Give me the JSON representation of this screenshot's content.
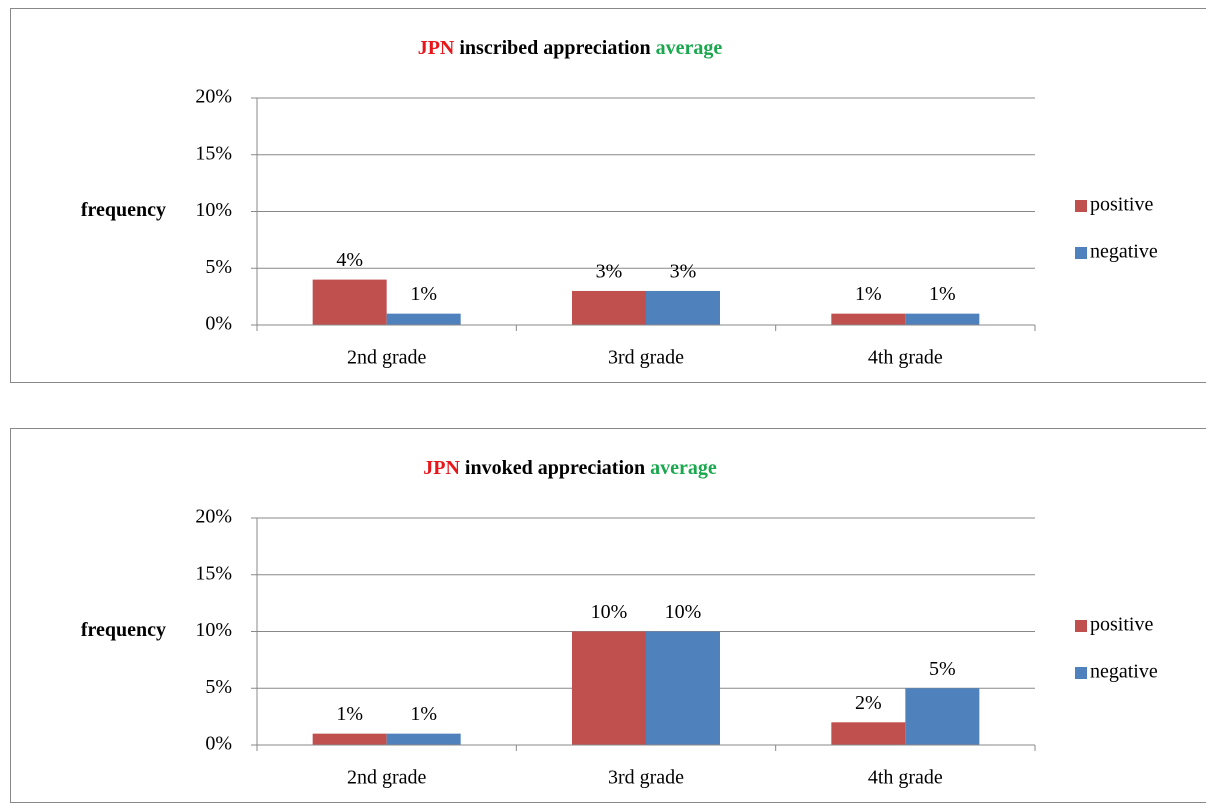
{
  "chart_data": [
    {
      "type": "bar",
      "title_parts": [
        {
          "text": "JPN",
          "color": "#e8161b"
        },
        {
          "text": "inscribed appreciation",
          "color": "#000000"
        },
        {
          "text": "average",
          "color": "#1aa84f"
        }
      ],
      "y_label": "frequency",
      "categories": [
        "2nd grade",
        "3rd grade",
        "4th grade"
      ],
      "series": [
        {
          "name": "positive",
          "color": "#c0504d",
          "values": [
            4,
            3,
            1
          ],
          "value_labels": [
            "4%",
            "3%",
            "1%"
          ]
        },
        {
          "name": "negative",
          "color": "#4f81bd",
          "values": [
            1,
            3,
            1
          ],
          "value_labels": [
            "1%",
            "3%",
            "1%"
          ]
        }
      ],
      "ylim": [
        0,
        20
      ],
      "yticks": [
        {
          "value": 0,
          "label": "0%"
        },
        {
          "value": 5,
          "label": "5%"
        },
        {
          "value": 10,
          "label": "10%"
        },
        {
          "value": 15,
          "label": "15%"
        },
        {
          "value": 20,
          "label": "20%"
        }
      ],
      "grid": true,
      "legend": "right"
    },
    {
      "type": "bar",
      "title_parts": [
        {
          "text": "JPN",
          "color": "#e8161b"
        },
        {
          "text": "invoked appreciation",
          "color": "#000000"
        },
        {
          "text": "average",
          "color": "#1aa84f"
        }
      ],
      "y_label": "frequency",
      "categories": [
        "2nd grade",
        "3rd grade",
        "4th grade"
      ],
      "series": [
        {
          "name": "positive",
          "color": "#c0504d",
          "values": [
            1,
            10,
            2
          ],
          "value_labels": [
            "1%",
            "10%",
            "2%"
          ]
        },
        {
          "name": "negative",
          "color": "#4f81bd",
          "values": [
            1,
            10,
            5
          ],
          "value_labels": [
            "1%",
            "10%",
            "5%"
          ]
        }
      ],
      "ylim": [
        0,
        20
      ],
      "yticks": [
        {
          "value": 0,
          "label": "0%"
        },
        {
          "value": 5,
          "label": "5%"
        },
        {
          "value": 10,
          "label": "10%"
        },
        {
          "value": 15,
          "label": "15%"
        },
        {
          "value": 20,
          "label": "20%"
        }
      ],
      "grid": true,
      "legend": "right"
    }
  ]
}
